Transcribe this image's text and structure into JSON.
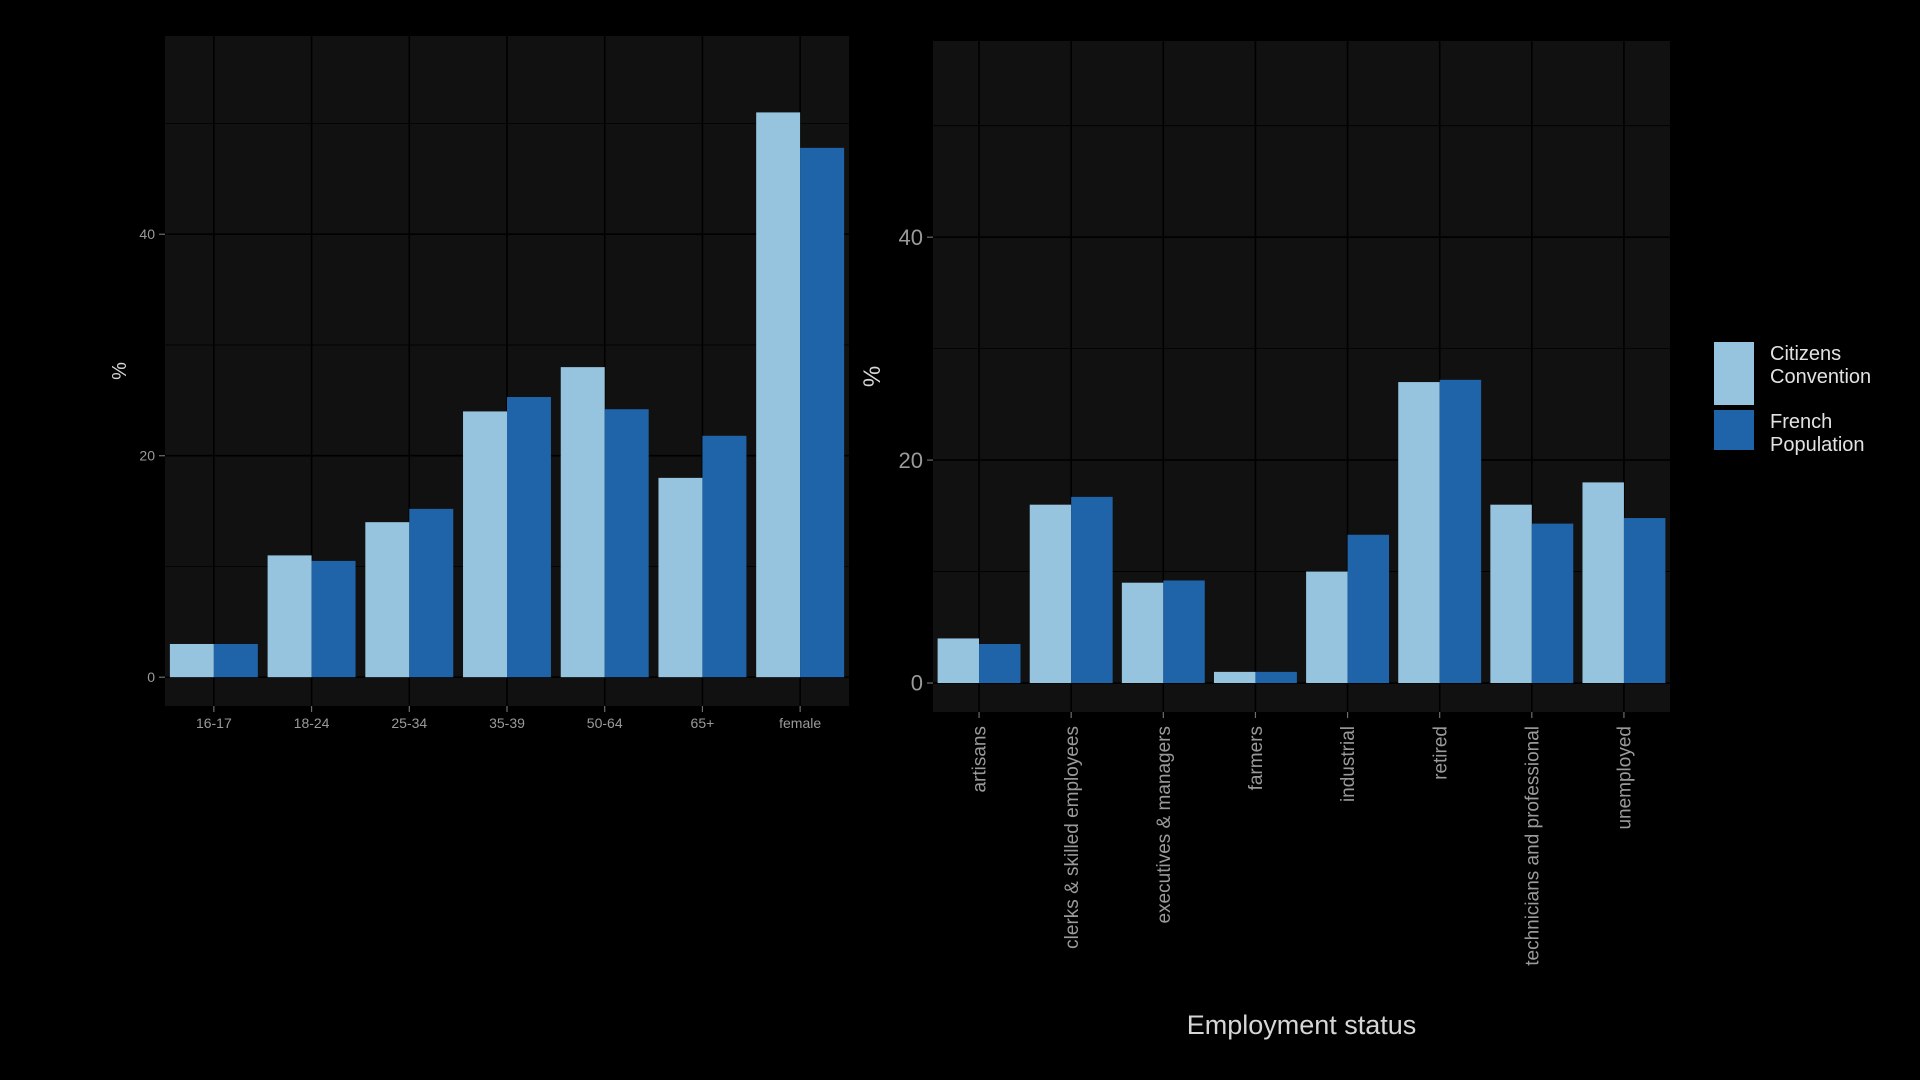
{
  "colors": {
    "background": "#000000",
    "panel": "#111111",
    "grid": "#000000",
    "citizens": "#96c3de",
    "french": "#1f64a8"
  },
  "legend": {
    "items": [
      {
        "key": "citizens",
        "lines": [
          "Citizens",
          "Convention"
        ]
      },
      {
        "key": "french",
        "lines": [
          "French",
          "Population"
        ]
      }
    ]
  },
  "chart_data": [
    {
      "type": "bar",
      "xlabel": "",
      "ylabel": "%",
      "ylim": [
        -2.6,
        57.9
      ],
      "yticks": [
        0,
        20,
        40
      ],
      "categories": [
        "16-17",
        "18-24",
        "25-34",
        "35-39",
        "50-64",
        "65+",
        "female"
      ],
      "series": [
        {
          "name": "Citizens Convention",
          "key": "citizens",
          "values": [
            3,
            11,
            14,
            24,
            28,
            18,
            51
          ]
        },
        {
          "name": "French Population",
          "key": "french",
          "values": [
            3,
            10.5,
            15.2,
            25.3,
            24.2,
            21.8,
            47.8
          ]
        }
      ],
      "grid": true,
      "legend": "none"
    },
    {
      "type": "bar",
      "xlabel": "Employment status",
      "ylabel": "%",
      "ylim": [
        -2.6,
        57.6
      ],
      "yticks": [
        0,
        20,
        40
      ],
      "categories": [
        "artisans",
        "clerks & skilled employees",
        "executives & managers",
        "farmers",
        "industrial",
        "retired",
        "technicians and professional",
        "unemployed"
      ],
      "series": [
        {
          "name": "Citizens Convention",
          "key": "citizens",
          "values": [
            4,
            16,
            9,
            1,
            10,
            27,
            16,
            18
          ]
        },
        {
          "name": "French Population",
          "key": "french",
          "values": [
            3.5,
            16.7,
            9.2,
            1,
            13.3,
            27.2,
            14.3,
            14.8
          ]
        }
      ],
      "grid": true,
      "legend": "right"
    }
  ]
}
